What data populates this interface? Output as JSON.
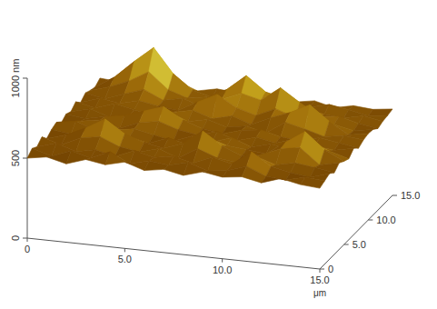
{
  "chart_data": {
    "type": "surface",
    "x": [
      0,
      1,
      2,
      3,
      4,
      5,
      6,
      7,
      8,
      9,
      10,
      11,
      12,
      13,
      14,
      15
    ],
    "y": [
      0,
      1,
      2,
      3,
      4,
      5,
      6,
      7,
      8,
      9,
      10,
      11,
      12,
      13,
      14,
      15
    ],
    "z": [
      [
        500,
        520,
        490,
        530,
        510,
        540,
        500,
        520,
        495,
        530,
        510,
        525,
        500,
        540,
        515,
        505
      ],
      [
        530,
        495,
        540,
        510,
        560,
        500,
        530,
        515,
        545,
        505,
        520,
        560,
        510,
        500,
        530,
        520
      ],
      [
        510,
        545,
        505,
        530,
        500,
        550,
        520,
        540,
        510,
        560,
        530,
        620,
        540,
        515,
        500,
        535
      ],
      [
        540,
        505,
        560,
        580,
        530,
        510,
        545,
        500,
        570,
        525,
        510,
        560,
        520,
        545,
        530,
        510
      ],
      [
        500,
        535,
        590,
        660,
        580,
        540,
        515,
        560,
        650,
        570,
        520,
        540,
        590,
        610,
        515,
        540
      ],
      [
        525,
        510,
        545,
        590,
        530,
        505,
        550,
        520,
        580,
        540,
        530,
        515,
        600,
        680,
        580,
        520
      ],
      [
        540,
        560,
        515,
        530,
        550,
        525,
        500,
        545,
        520,
        560,
        515,
        545,
        525,
        590,
        540,
        505
      ],
      [
        505,
        530,
        550,
        510,
        560,
        580,
        540,
        520,
        555,
        510,
        545,
        520,
        560,
        530,
        515,
        540
      ],
      [
        530,
        515,
        540,
        560,
        600,
        640,
        570,
        530,
        510,
        545,
        560,
        530,
        515,
        550,
        530,
        510
      ],
      [
        515,
        545,
        505,
        530,
        560,
        580,
        530,
        555,
        520,
        540,
        510,
        590,
        560,
        525,
        545,
        530
      ],
      [
        545,
        520,
        560,
        535,
        510,
        545,
        570,
        530,
        560,
        520,
        575,
        620,
        680,
        590,
        520,
        540
      ],
      [
        510,
        550,
        530,
        560,
        540,
        525,
        590,
        650,
        580,
        545,
        600,
        560,
        590,
        540,
        515,
        535
      ],
      [
        540,
        515,
        560,
        600,
        545,
        570,
        530,
        590,
        640,
        610,
        700,
        620,
        545,
        560,
        530,
        510
      ],
      [
        525,
        560,
        610,
        680,
        580,
        540,
        560,
        620,
        720,
        630,
        600,
        550,
        530,
        520,
        545,
        525
      ],
      [
        515,
        590,
        700,
        800,
        650,
        560,
        530,
        570,
        610,
        560,
        545,
        530,
        560,
        540,
        515,
        530
      ],
      [
        540,
        530,
        600,
        640,
        570,
        525,
        550,
        540,
        530,
        545,
        520,
        540,
        510,
        535,
        525,
        540
      ]
    ],
    "xlim": [
      0,
      15
    ],
    "ylim": [
      0,
      15
    ],
    "zlim": [
      0,
      1000
    ],
    "xticks": [
      0,
      {
        "value": 5,
        "label": "5.0"
      },
      {
        "value": 10,
        "label": "10.0"
      },
      {
        "value": 15,
        "label": "15.0"
      }
    ],
    "yticks": [
      0,
      {
        "value": 5,
        "label": "5.0"
      },
      {
        "value": 10,
        "label": "10.0"
      },
      {
        "value": 15,
        "label": "15.0"
      }
    ],
    "zticks": [
      0,
      500,
      {
        "value": 1000,
        "label": "1000 nm"
      }
    ],
    "xlabel": "μm"
  }
}
